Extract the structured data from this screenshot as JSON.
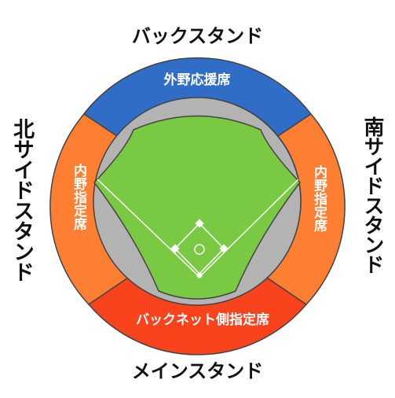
{
  "stands": {
    "back": "バックスタンド",
    "main": "メインスタンド",
    "north": "北サイドスタンド",
    "south": "南サイドスタンド"
  },
  "seats": {
    "outfield": "外野応援席",
    "infield_left": "内野指定席",
    "infield_right": "内野指定席",
    "backnet": "バックネット側指定席"
  },
  "colors": {
    "outfield": "#2f6dc7",
    "infield": "#ff7f32",
    "backnet": "#f8431c",
    "field": "#7ac943",
    "foul": "#b3b3b3",
    "line": "#444444"
  }
}
